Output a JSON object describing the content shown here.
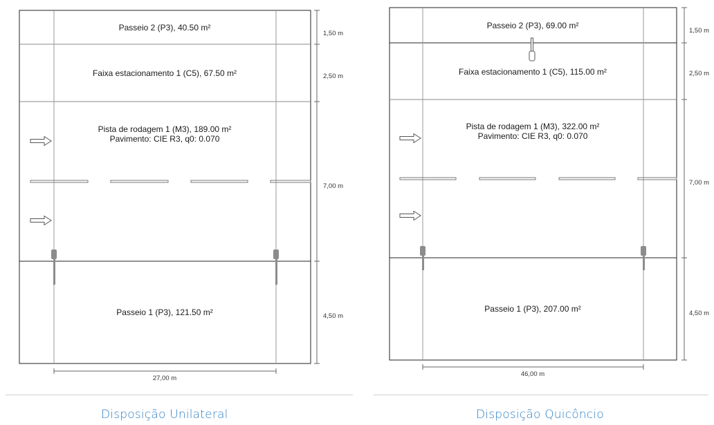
{
  "colors": {
    "line": "#222222",
    "thin_line": "#9a9a9a",
    "dim_line": "#666666",
    "luminaire": "#8c8c8c",
    "caption": "#2e7fc4",
    "separator": "#cfcfcf"
  },
  "icons": {
    "traffic_arrow": "right-arrow-outline",
    "luminaire": "street-light-pole"
  },
  "left_layout": {
    "zones": [
      {
        "label": "Passeio 2 (P3), 40.50 m²"
      },
      {
        "label": "Faixa estacionamento 1 (C5), 67.50 m²"
      },
      {
        "label_line1": "Pista de rodagem 1 (M3), 189.00 m²",
        "label_line2": "Pavimento: CIE R3, q0: 0.070"
      },
      {
        "label": "Passeio 1 (P3), 121.50 m²"
      }
    ],
    "widths": [
      "1,50 m",
      "2,50 m",
      "7,00 m",
      "4,50 m"
    ],
    "length": "27,00 m",
    "caption": "Disposição Unilateral"
  },
  "right_layout": {
    "zones": [
      {
        "label": "Passeio 2 (P3), 69.00 m²"
      },
      {
        "label": "Faixa estacionamento 1 (C5), 115.00 m²"
      },
      {
        "label_line1": "Pista de rodagem 1 (M3), 322.00 m²",
        "label_line2": "Pavimento: CIE R3, q0: 0.070"
      },
      {
        "label": "Passeio 1 (P3), 207.00 m²"
      }
    ],
    "widths": [
      "1,50 m",
      "2,50 m",
      "7,00 m",
      "4,50 m"
    ],
    "length": "46,00 m",
    "caption": "Disposição Quicôncio"
  }
}
